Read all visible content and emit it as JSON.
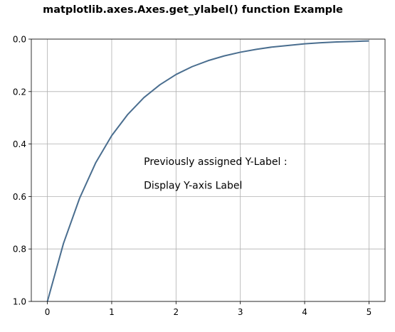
{
  "chart_data": {
    "type": "line",
    "title": "matplotlib.axes.Axes.get_ylabel() function Example",
    "xlabel": "",
    "ylabel": "",
    "xlim": [
      -0.25,
      5.25
    ],
    "ylim": [
      0,
      1
    ],
    "y_inverted": true,
    "xticks": [
      0,
      1,
      2,
      3,
      4,
      5
    ],
    "xtick_labels": [
      "0",
      "1",
      "2",
      "3",
      "4",
      "5"
    ],
    "yticks": [
      0,
      0.2,
      0.4,
      0.6,
      0.8,
      1.0
    ],
    "ytick_labels": [
      "0.0",
      "0.2",
      "0.4",
      "0.6",
      "0.8",
      "1.0"
    ],
    "grid": true,
    "series": [
      {
        "color": "#4a6e8f",
        "x": [
          0,
          0.25,
          0.5,
          0.75,
          1,
          1.25,
          1.5,
          1.75,
          2,
          2.25,
          2.5,
          2.75,
          3,
          3.25,
          3.5,
          3.75,
          4,
          4.25,
          4.5,
          4.75,
          5
        ],
        "y": [
          1.0,
          0.779,
          0.607,
          0.472,
          0.368,
          0.287,
          0.223,
          0.174,
          0.135,
          0.105,
          0.082,
          0.064,
          0.05,
          0.039,
          0.03,
          0.024,
          0.018,
          0.014,
          0.011,
          0.009,
          0.007
        ]
      }
    ],
    "annotations": [
      {
        "text": "Previously assigned Y-Label :",
        "x": 1.5,
        "y": 0.48
      },
      {
        "text": "Display Y-axis Label",
        "x": 1.5,
        "y": 0.57
      }
    ]
  }
}
